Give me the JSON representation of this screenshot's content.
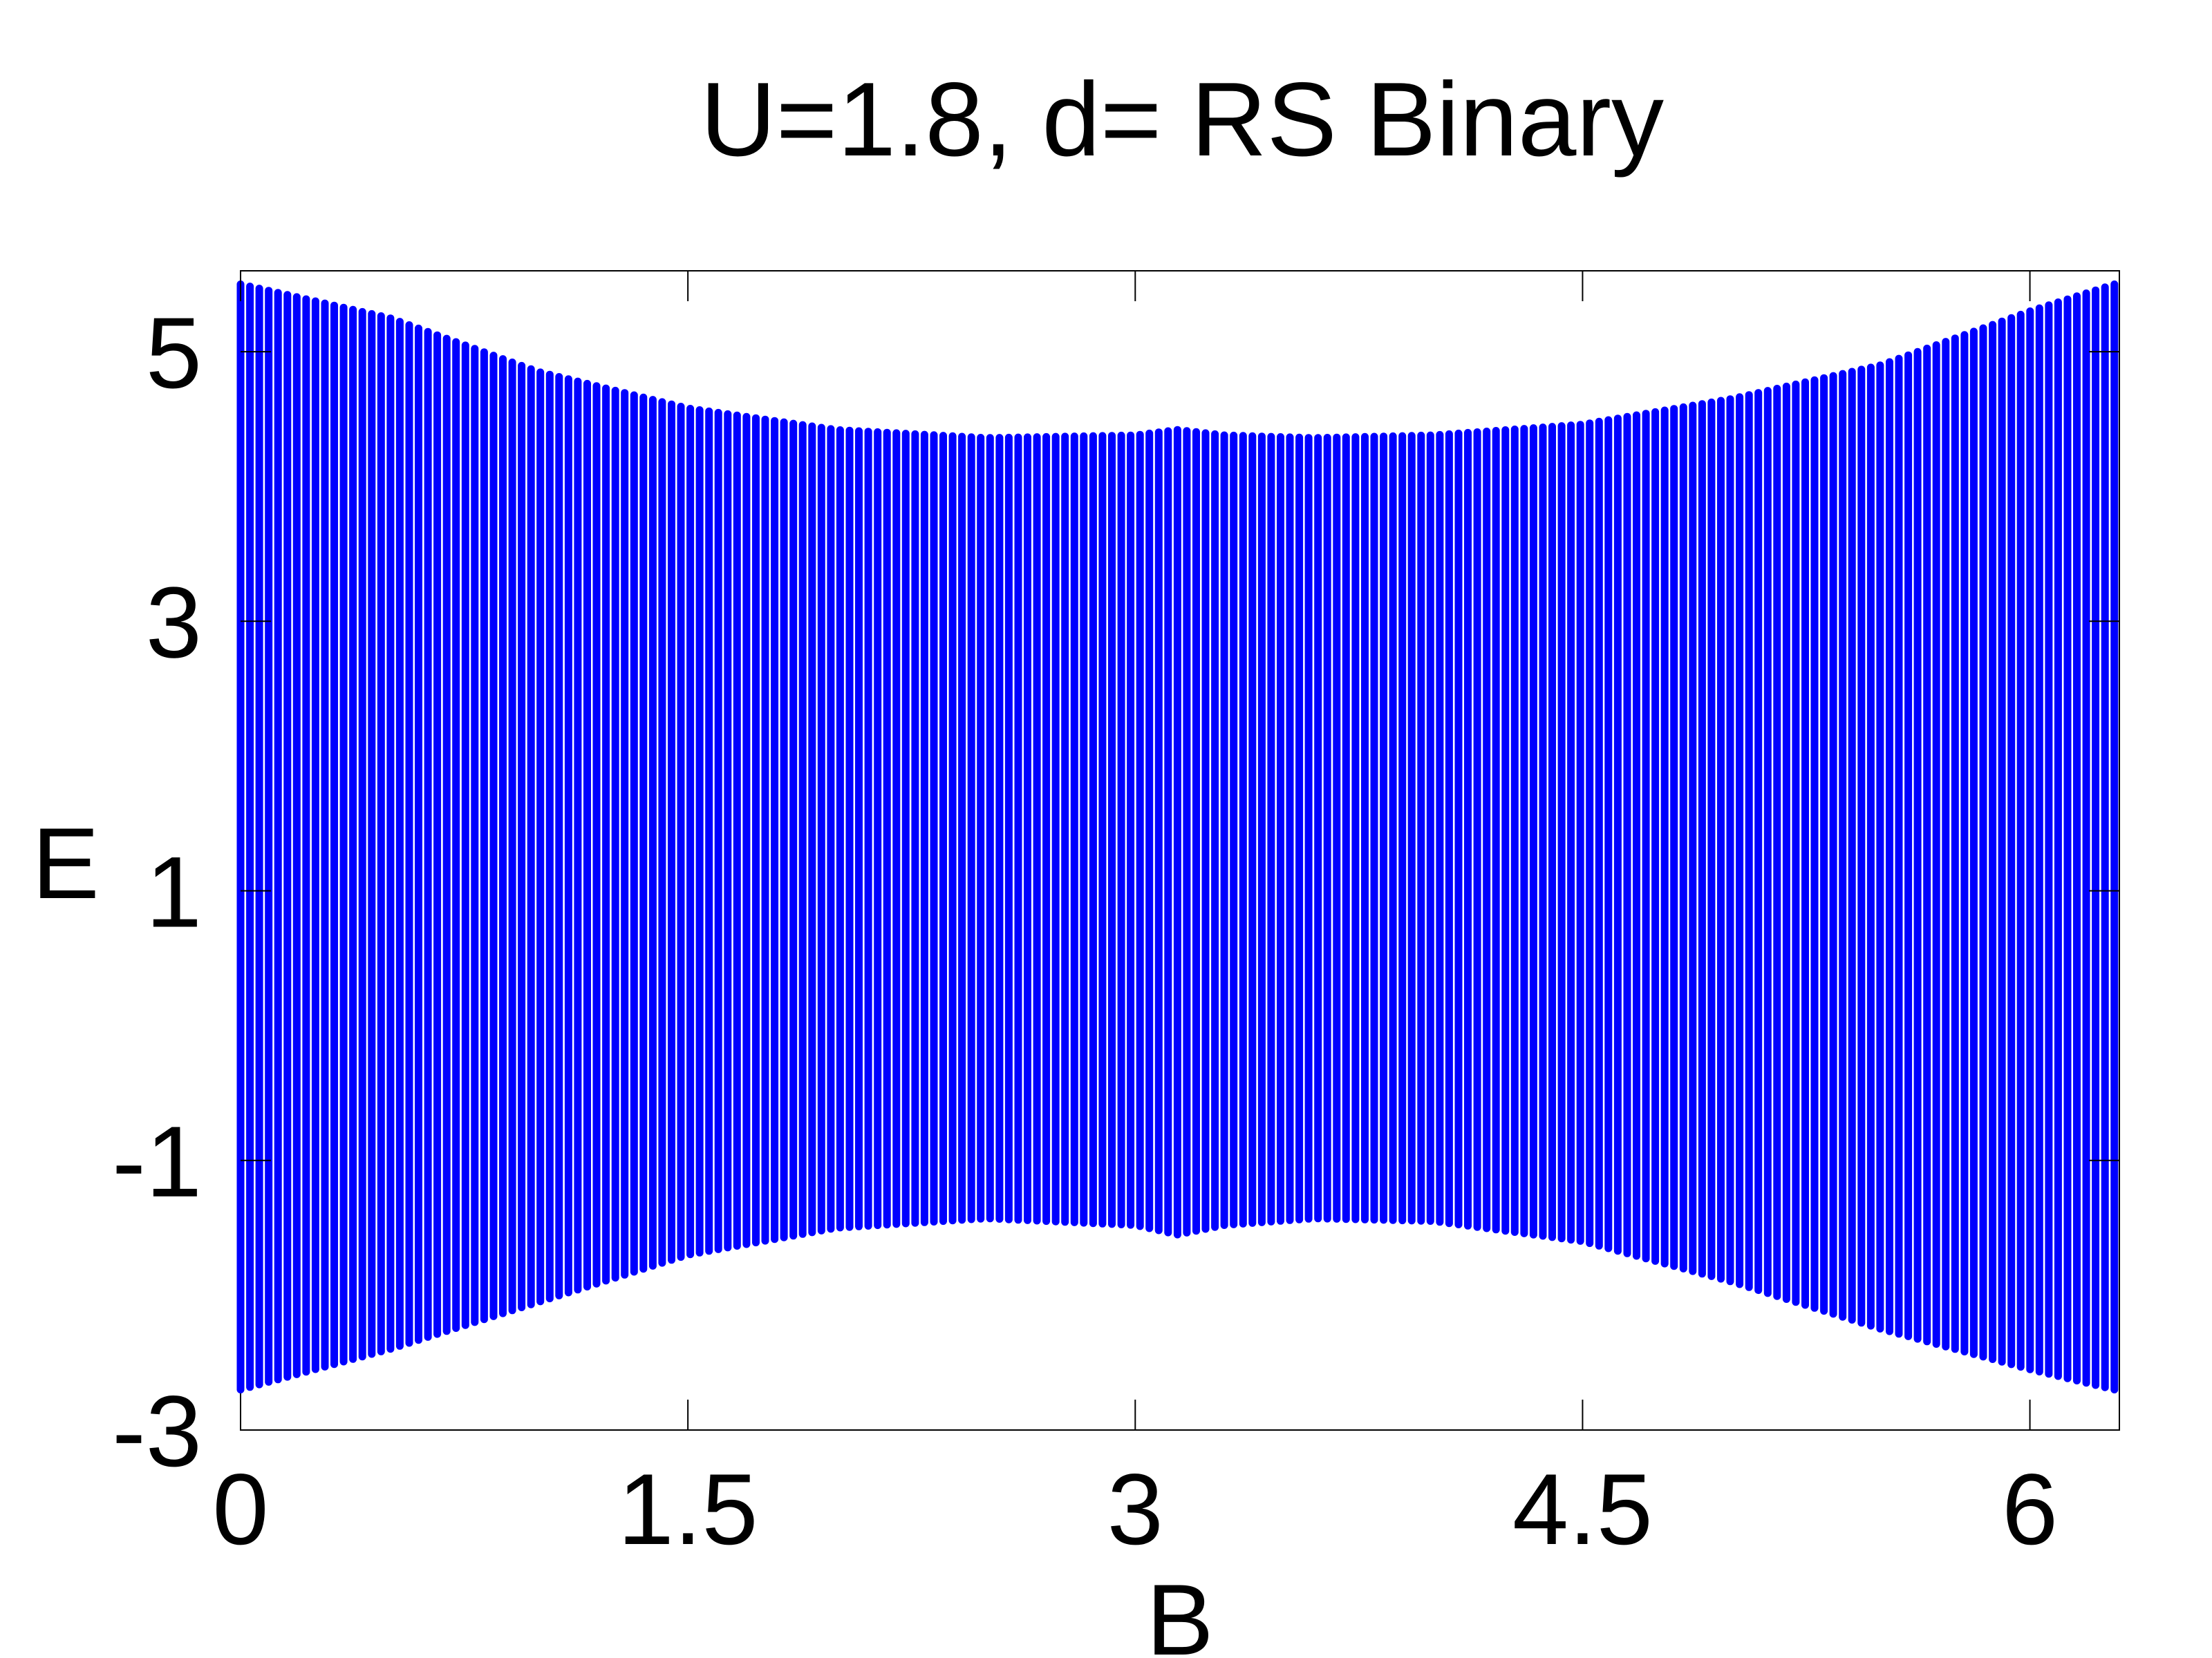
{
  "chart_data": {
    "type": "scatter",
    "title": "U=1.8, d= RS Binary",
    "xlabel": "B",
    "ylabel": "E",
    "xlim": [
      0,
      6.3
    ],
    "ylim": [
      -3,
      5.6
    ],
    "xticks": [
      "0",
      "1.5",
      "3",
      "4.5",
      "6"
    ],
    "yticks": [
      "-3",
      "-1",
      "1",
      "3",
      "5"
    ],
    "grid": false,
    "legend": "none",
    "marker_color": "#0000ff",
    "series": [
      {
        "x_start": 0,
        "x_end": 6.2832,
        "x_count": 201,
        "upper_envelope": {
          "x": [
            0,
            0.5,
            1.0,
            1.5,
            2.0,
            2.5,
            3.0,
            3.1416,
            3.3,
            3.6,
            4.0,
            4.5,
            5.0,
            5.5,
            6.0,
            6.2832
          ],
          "y": [
            5.5,
            5.25,
            4.85,
            4.58,
            4.42,
            4.36,
            4.38,
            4.42,
            4.38,
            4.36,
            4.38,
            4.46,
            4.65,
            4.9,
            5.3,
            5.5
          ]
        },
        "lower_envelope": {
          "x": [
            0,
            0.5,
            1.0,
            1.5,
            2.0,
            2.5,
            3.0,
            3.1416,
            3.3,
            3.6,
            4.0,
            4.5,
            5.0,
            5.5,
            6.0,
            6.2832
          ],
          "y": [
            -2.7,
            -2.4,
            -2.05,
            -1.7,
            -1.5,
            -1.43,
            -1.48,
            -1.55,
            -1.48,
            -1.43,
            -1.45,
            -1.6,
            -1.9,
            -2.25,
            -2.55,
            -2.7
          ]
        }
      }
    ]
  }
}
